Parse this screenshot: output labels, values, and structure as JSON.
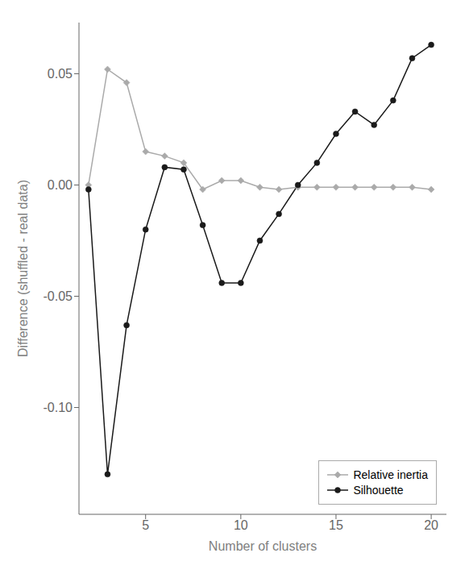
{
  "chart_data": {
    "type": "line",
    "xlabel": "Number of clusters",
    "ylabel": "Difference (shuffled - real data)",
    "x": [
      2,
      3,
      4,
      5,
      6,
      7,
      8,
      9,
      10,
      11,
      12,
      13,
      14,
      15,
      16,
      17,
      18,
      19,
      20
    ],
    "series": [
      {
        "name": "Relative inertia",
        "color": "#aaaaaa",
        "marker": "diamond",
        "line_style": "solid",
        "values": [
          0.0,
          0.052,
          0.046,
          0.015,
          0.013,
          0.01,
          -0.002,
          0.002,
          0.002,
          -0.001,
          -0.002,
          -0.001,
          -0.001,
          -0.001,
          -0.001,
          -0.001,
          -0.001,
          -0.001,
          -0.002
        ]
      },
      {
        "name": "Silhouette",
        "color": "#1a1a1a",
        "marker": "circle",
        "line_style": "solid",
        "values": [
          -0.002,
          -0.13,
          -0.063,
          -0.02,
          0.008,
          0.007,
          -0.018,
          -0.044,
          -0.044,
          -0.025,
          -0.013,
          0.0,
          0.01,
          0.023,
          0.033,
          0.027,
          0.038,
          0.057,
          0.063
        ]
      }
    ],
    "xlim": [
      1.5,
      20.8
    ],
    "xticks": [
      5,
      10,
      15,
      20
    ],
    "ylim": [
      -0.148,
      0.073
    ],
    "yticks": [
      0.05,
      {
        "value": 0,
        "label": "0.00"
      },
      -0.05,
      {
        "value": -0.1,
        "label": "-0.10"
      }
    ],
    "grid": false,
    "legend": "lower right"
  }
}
